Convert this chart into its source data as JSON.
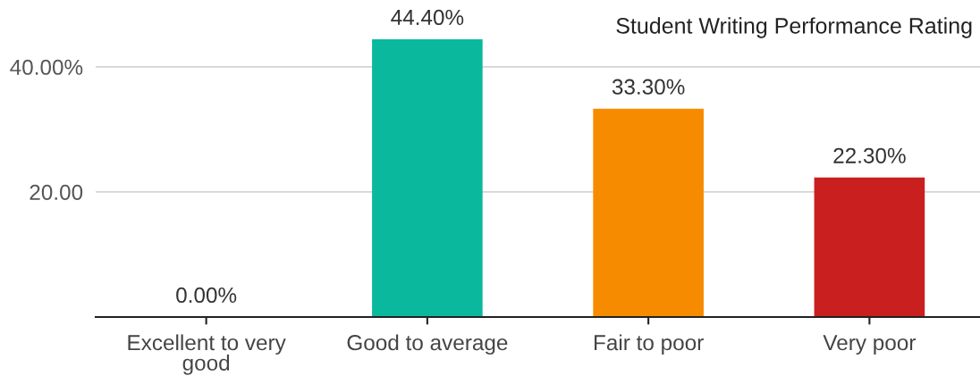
{
  "chart_data": {
    "type": "bar",
    "title": "Student Writing Performance Rating",
    "categories": [
      "Excellent to very good",
      "Good to average",
      "Fair to poor",
      "Very poor"
    ],
    "values": [
      0,
      44.4,
      33.3,
      22.3
    ],
    "colors": [
      null,
      "#0ab99d",
      "#f78b00",
      "#c91f1f"
    ],
    "value_labels": [
      "0.00%",
      "44.40%",
      "33.30%",
      "22.30%"
    ],
    "ylim": [
      0,
      44.4
    ],
    "yticks": [
      {
        "value": 20,
        "label": "20.00"
      },
      {
        "value": 40,
        "label": "40.00%"
      }
    ],
    "grid": "y"
  }
}
